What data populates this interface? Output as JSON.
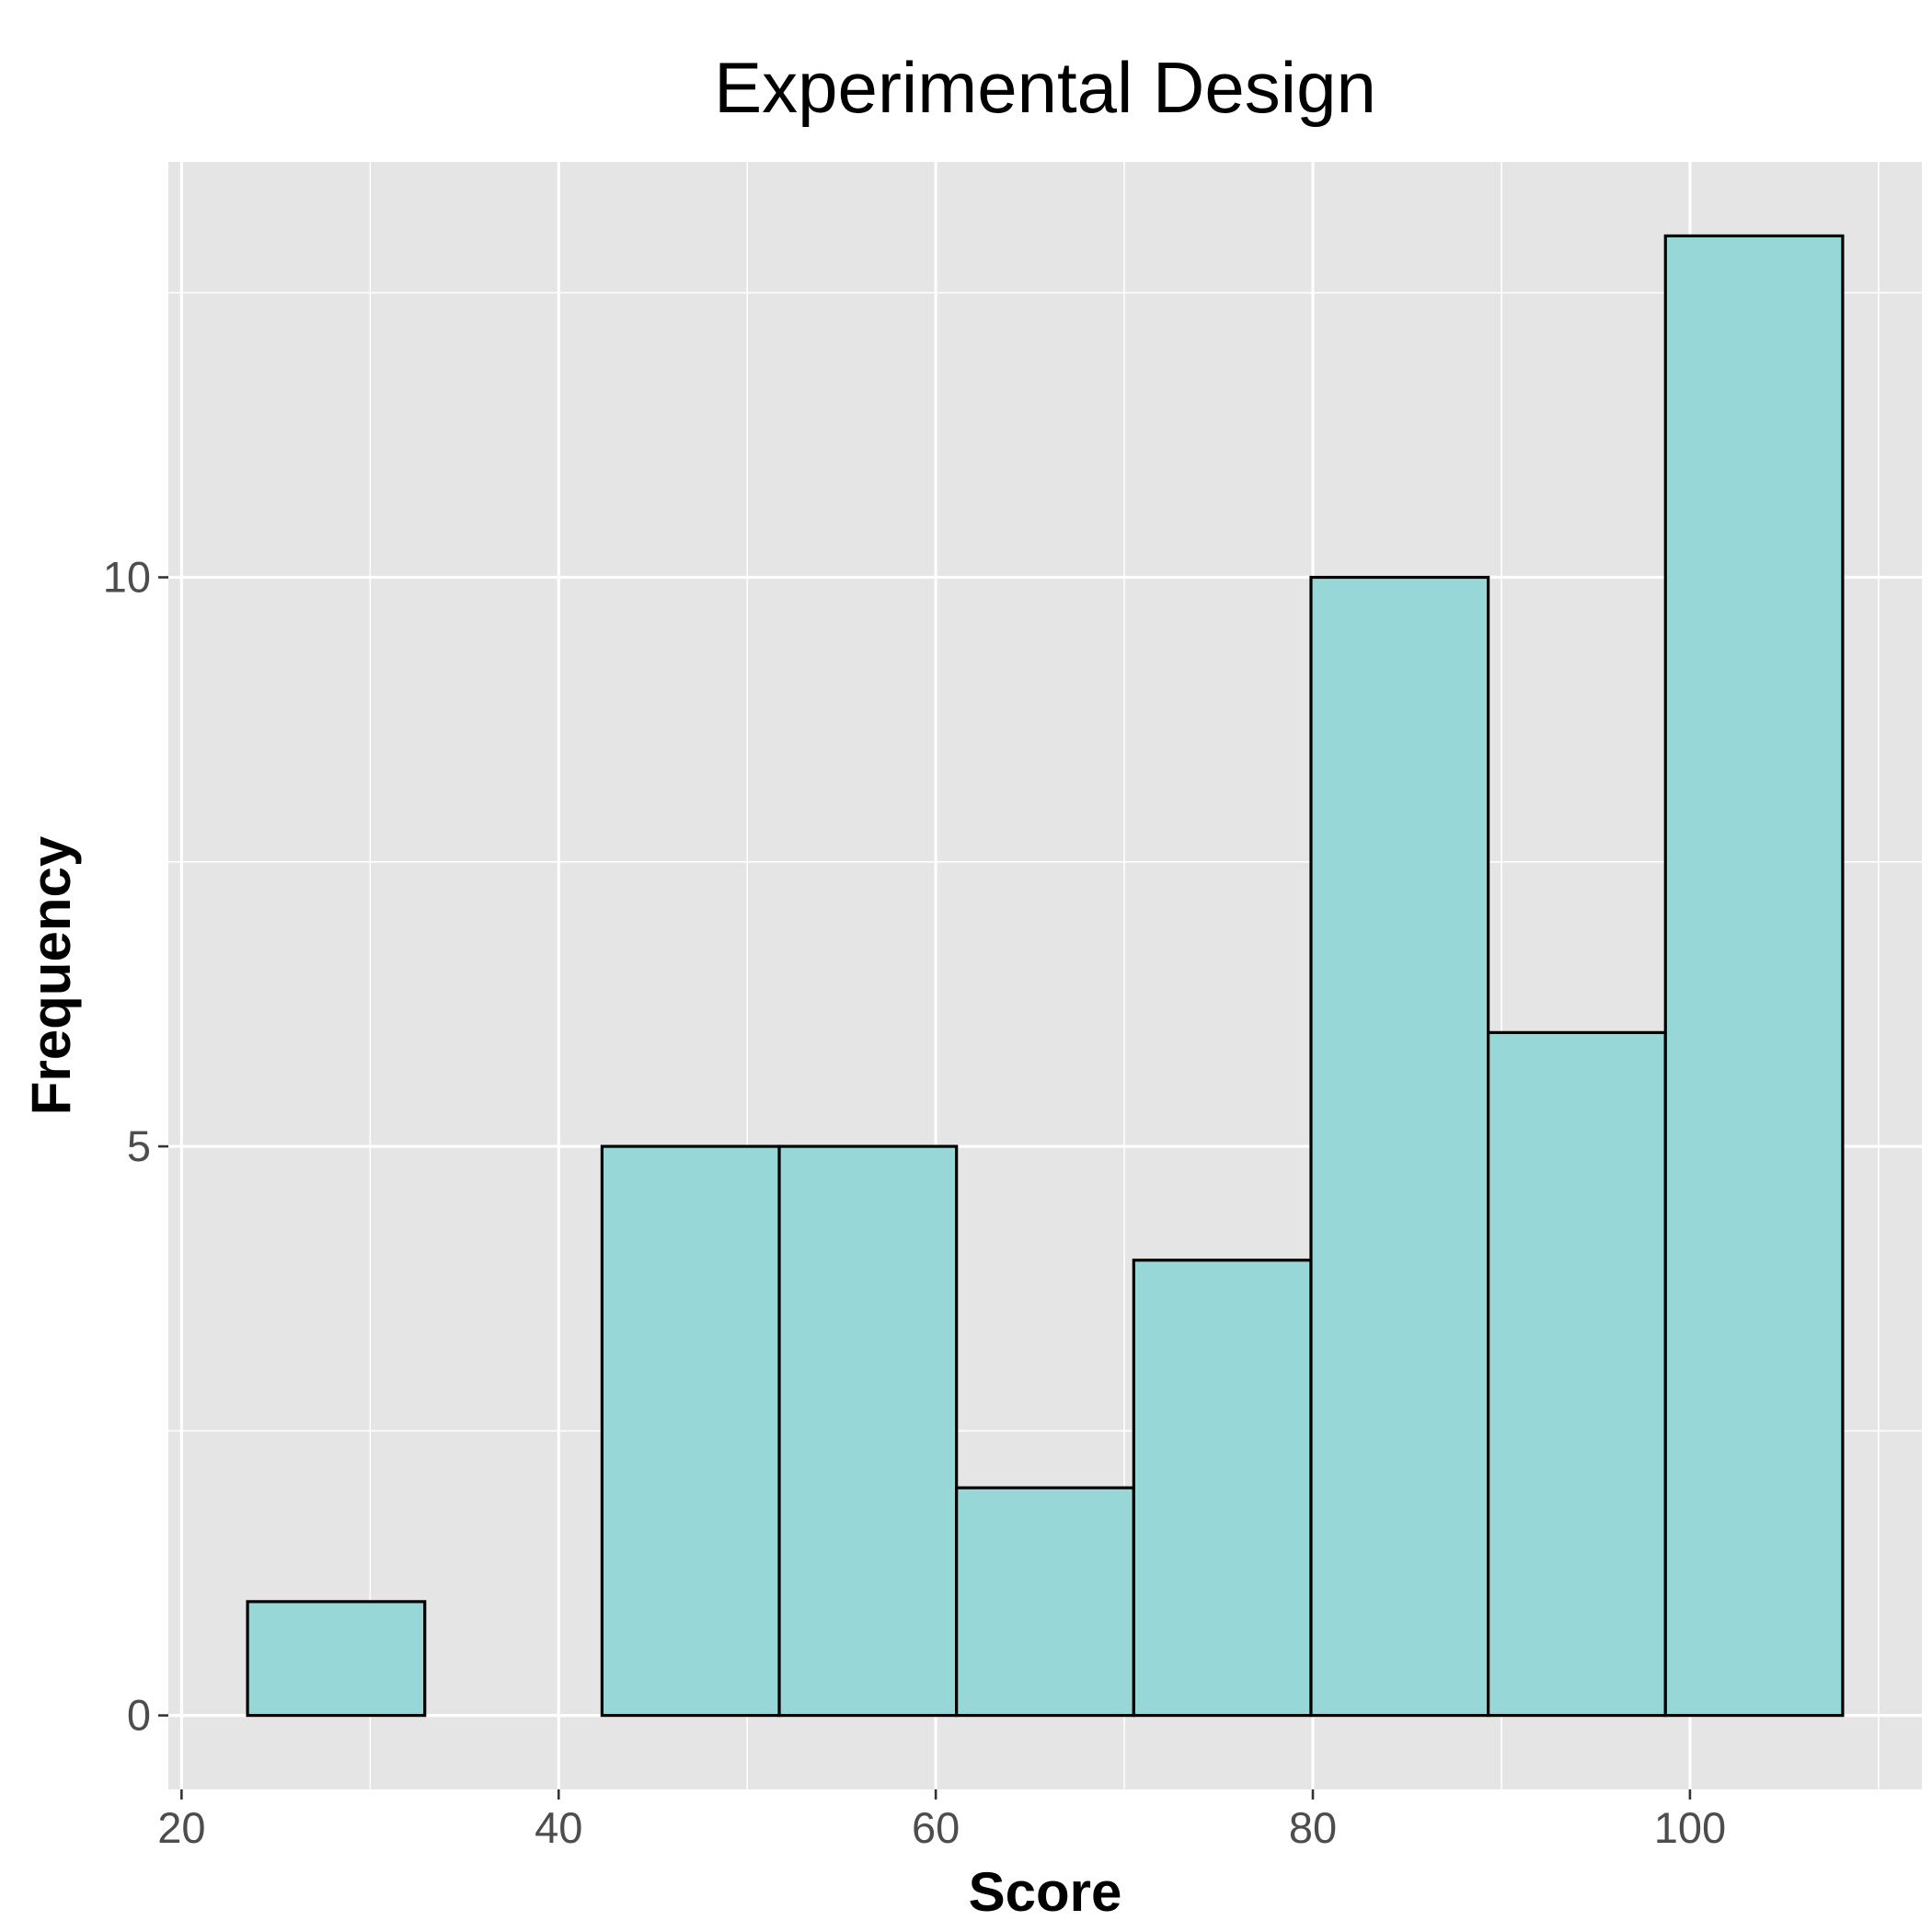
{
  "chart_data": {
    "type": "bar",
    "title": "Experimental Design",
    "xlabel": "Score",
    "ylabel": "Frequency",
    "bins": [
      {
        "x0": 23.5,
        "x1": 32.9,
        "count": 1
      },
      {
        "x0": 32.9,
        "x1": 42.3,
        "count": 0
      },
      {
        "x0": 42.3,
        "x1": 51.7,
        "count": 5
      },
      {
        "x0": 51.7,
        "x1": 61.1,
        "count": 5
      },
      {
        "x0": 61.1,
        "x1": 70.5,
        "count": 2
      },
      {
        "x0": 70.5,
        "x1": 79.9,
        "count": 4
      },
      {
        "x0": 79.9,
        "x1": 89.3,
        "count": 10
      },
      {
        "x0": 89.3,
        "x1": 98.7,
        "count": 6
      },
      {
        "x0": 98.7,
        "x1": 108.1,
        "count": 13
      }
    ],
    "xlim": [
      19.3,
      112.3
    ],
    "ylim": [
      -0.65,
      13.65
    ],
    "x_ticks": [
      20,
      40,
      60,
      80,
      100
    ],
    "y_ticks": [
      0,
      5,
      10
    ],
    "bar_fill": "#97D7D7",
    "bar_edge": "#000000",
    "panel_background": "#E5E5E5",
    "grid": true,
    "legend": "none"
  }
}
